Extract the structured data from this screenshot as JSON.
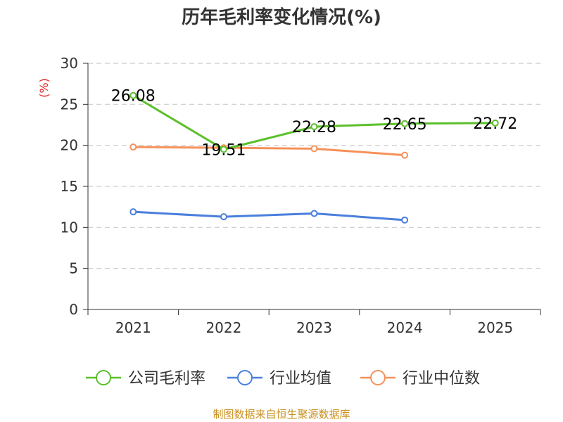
{
  "chart_data": {
    "type": "line",
    "title": "历年毛利率变化情况(%)",
    "ylabel": "(%)",
    "xlabel": "",
    "categories": [
      "2021",
      "2022",
      "2023",
      "2024",
      "2025"
    ],
    "ylim": [
      0,
      30
    ],
    "yticks": [
      0,
      5,
      10,
      15,
      20,
      25,
      30
    ],
    "grid": true,
    "legend_position": "bottom",
    "series": [
      {
        "name": "公司毛利率",
        "color": "#5cbf2a",
        "values": [
          26.08,
          19.51,
          22.28,
          22.65,
          22.72
        ],
        "labels": [
          "26.08",
          "19.51",
          "22.28",
          "22.65",
          "22.72"
        ]
      },
      {
        "name": "行业均值",
        "color": "#4a7fdc",
        "values": [
          11.9,
          11.3,
          11.7,
          10.9,
          null
        ]
      },
      {
        "name": "行业中位数",
        "color": "#f5915a",
        "values": [
          19.8,
          19.7,
          19.6,
          18.8,
          null
        ]
      }
    ]
  },
  "source_note": "制图数据来自恒生聚源数据库",
  "colors": {
    "unit_label": "#e02020",
    "source_note": "#c8901e",
    "grid": "#cccccc",
    "axis": "#333333"
  }
}
